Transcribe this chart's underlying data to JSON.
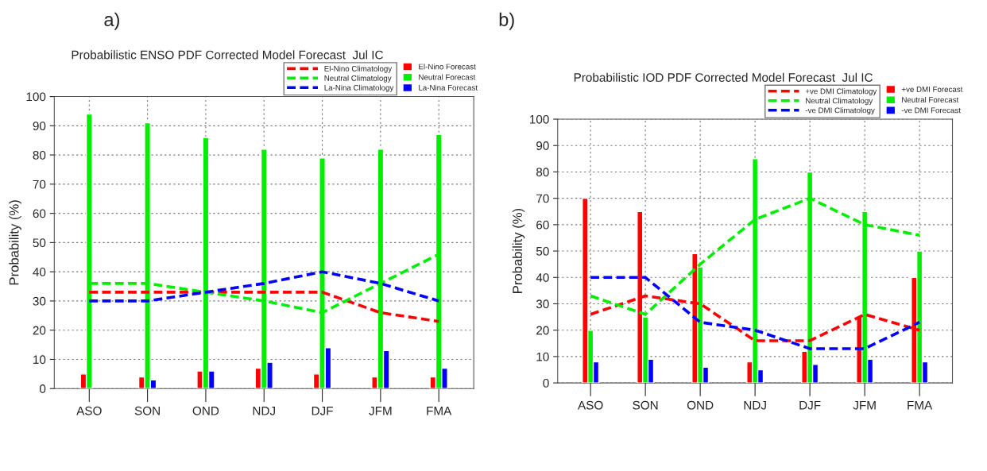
{
  "chart_data": [
    {
      "type": "bar",
      "title": "Probabilistic ENSO PDF Corrected Model Forecast  Jul IC",
      "ylabel": "Probability (%)",
      "annotations": [
        "a)"
      ],
      "categories": [
        "ASO",
        "SON",
        "OND",
        "NDJ",
        "DJF",
        "JFM",
        "FMA"
      ],
      "ylim": [
        0,
        100
      ],
      "yticks": [
        0,
        10,
        20,
        30,
        40,
        50,
        60,
        70,
        80,
        90,
        100
      ],
      "grid": true,
      "legend": "top right",
      "series": [
        {
          "name": "El-Nino Forecast",
          "color": "#ff0000",
          "values": [
            5,
            4,
            6,
            7,
            5,
            4,
            4
          ]
        },
        {
          "name": "Neutral Forecast",
          "color": "#00ee00",
          "values": [
            94,
            91,
            86,
            82,
            79,
            82,
            87
          ]
        },
        {
          "name": "La-Nina Forecast",
          "color": "#0000ff",
          "values": [
            null,
            3,
            6,
            9,
            14,
            13,
            7
          ]
        },
        {
          "name": "El-Nino Climatology",
          "type": "line",
          "line_style": "dashed",
          "color": "#ff0000",
          "values": [
            33,
            33,
            33,
            33,
            33,
            26,
            23
          ]
        },
        {
          "name": "Neutral Climatology",
          "type": "line",
          "line_style": "dashed",
          "color": "#00ee00",
          "values": [
            36,
            36,
            33,
            30,
            26,
            36,
            46
          ]
        },
        {
          "name": "La-Nina Climatology",
          "type": "line",
          "line_style": "dashed",
          "color": "#0000ff",
          "values": [
            30,
            30,
            33,
            36,
            40,
            36,
            30
          ]
        }
      ]
    },
    {
      "type": "bar",
      "title": "Probabilistic IOD PDF Corrected Model Forecast  Jul IC",
      "ylabel": "Probability (%)",
      "annotations": [
        "b)"
      ],
      "categories": [
        "ASO",
        "SON",
        "OND",
        "NDJ",
        "DJF",
        "JFM",
        "FMA"
      ],
      "ylim": [
        0,
        100
      ],
      "yticks": [
        0,
        10,
        20,
        30,
        40,
        50,
        60,
        70,
        80,
        90,
        100
      ],
      "grid": true,
      "legend": "top right",
      "series": [
        {
          "name": "+ve DMI Forecast",
          "color": "#ff0000",
          "values": [
            70,
            65,
            49,
            8,
            12,
            25,
            40
          ]
        },
        {
          "name": "Neutral Forecast",
          "color": "#00ee00",
          "values": [
            20,
            25,
            44,
            85,
            80,
            65,
            50
          ]
        },
        {
          "name": "-ve DMI Forecast",
          "color": "#0000ff",
          "values": [
            8,
            9,
            6,
            5,
            7,
            9,
            8
          ]
        },
        {
          "name": "+ve DMI Climatology",
          "type": "line",
          "line_style": "dashed",
          "color": "#ff0000",
          "values": [
            26,
            33,
            30,
            16,
            16,
            26,
            20
          ]
        },
        {
          "name": "Neutral Climatology",
          "type": "line",
          "line_style": "dashed",
          "color": "#00ee00",
          "values": [
            33,
            26,
            45,
            62,
            70,
            60,
            56
          ]
        },
        {
          "name": "-ve DMI Climatology",
          "type": "line",
          "line_style": "dashed",
          "color": "#0000ff",
          "values": [
            40,
            40,
            23,
            20,
            13,
            13,
            23
          ]
        }
      ]
    }
  ]
}
